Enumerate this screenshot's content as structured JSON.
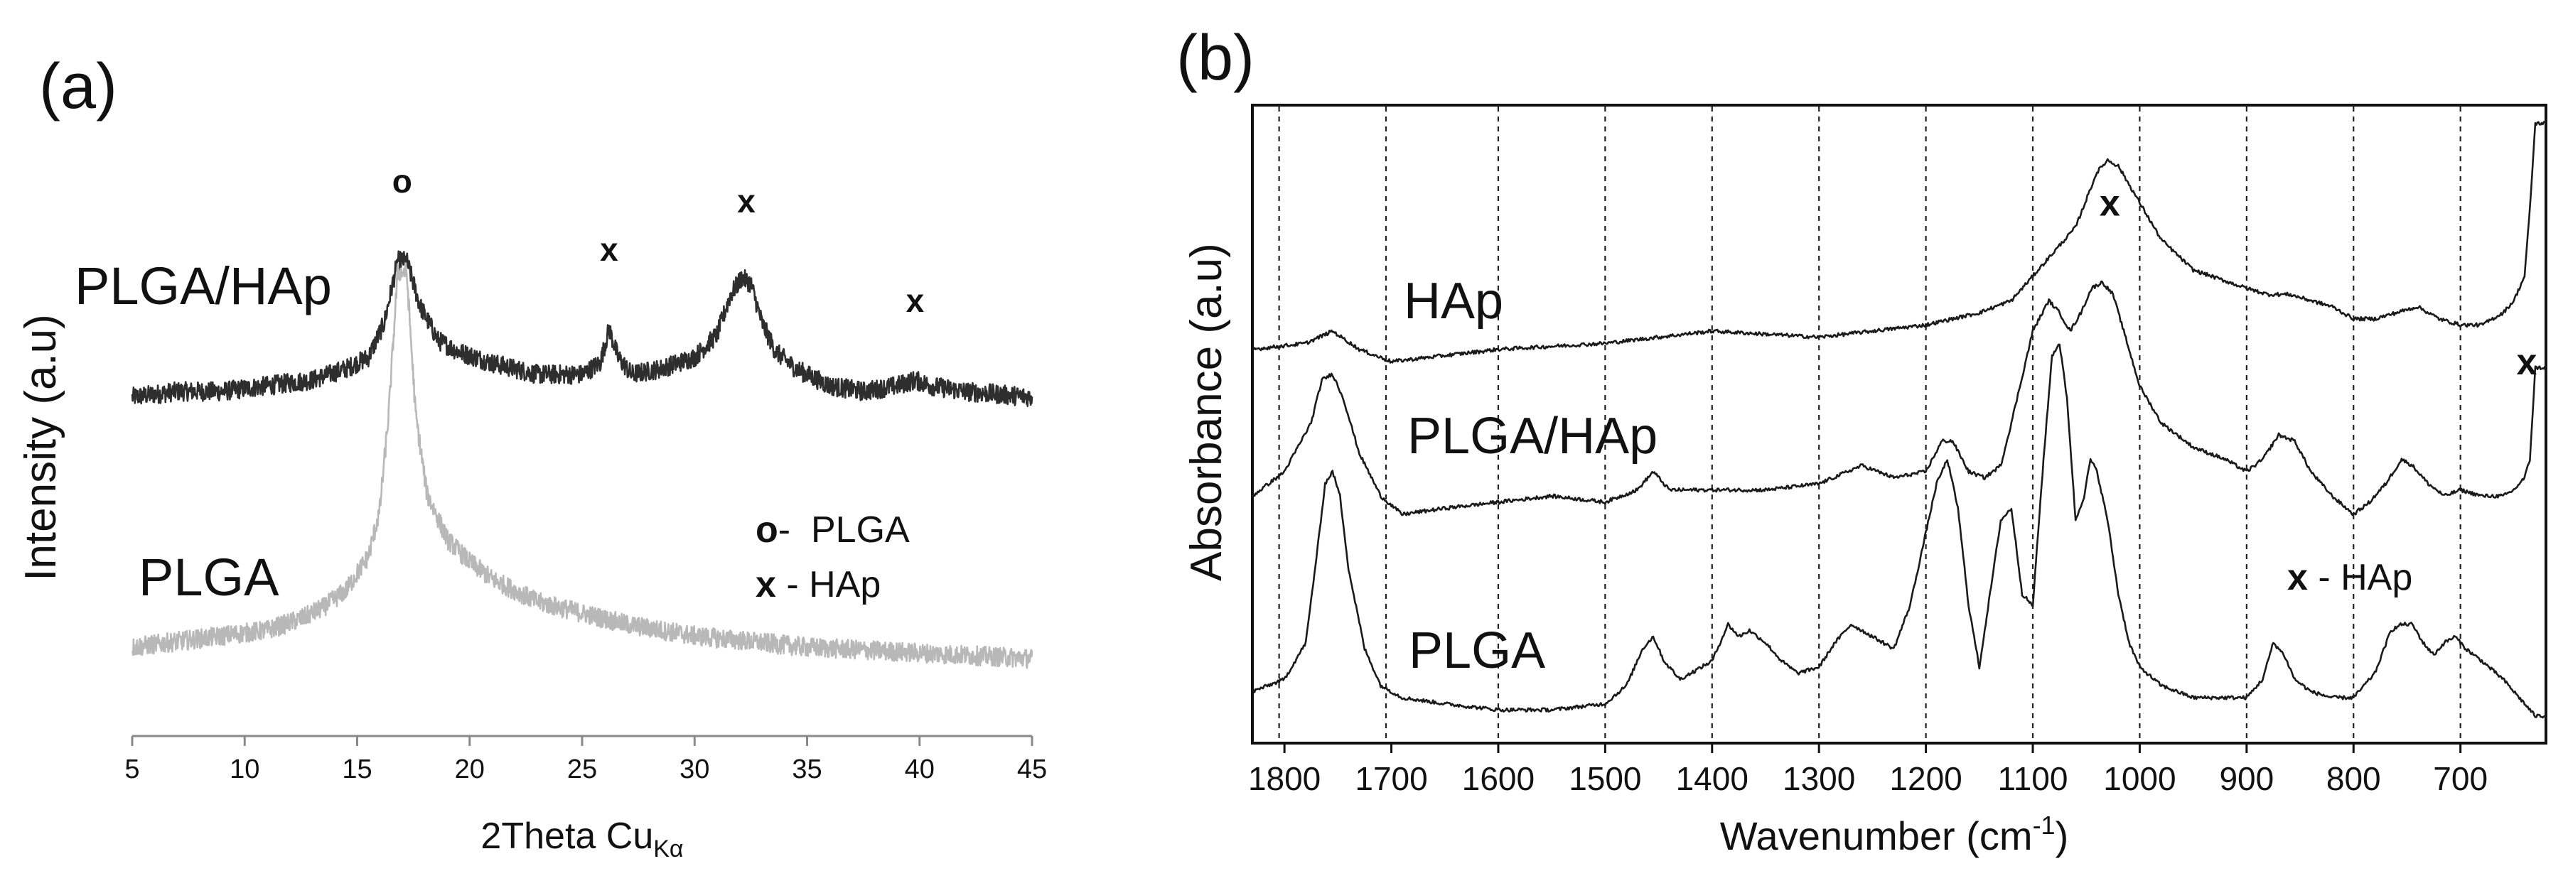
{
  "chart_data": [
    {
      "panel_label": "(a)",
      "type": "line",
      "title": "",
      "xlabel": "2Theta Cu",
      "xlabel_sub": "Kα",
      "ylabel": "Intensity (a.u)",
      "xlim": [
        5,
        45
      ],
      "ylim": [
        0,
        100
      ],
      "xticks": [
        "5",
        "10",
        "15",
        "20",
        "25",
        "30",
        "35",
        "40",
        "45"
      ],
      "xtick_values": [
        5,
        10,
        15,
        20,
        25,
        30,
        35,
        40,
        45
      ],
      "y_axis_ticks": "none",
      "grid": false,
      "series": [
        {
          "name": "PLGA/HAp",
          "color": "#2e2e2e",
          "x": [
            5,
            7,
            9,
            11,
            13,
            14.5,
            15.5,
            16.2,
            16.8,
            17.2,
            17.8,
            18.6,
            19.5,
            21,
            23,
            25,
            25.8,
            26.2,
            26.6,
            27.2,
            28.5,
            30,
            31,
            31.6,
            32.1,
            32.5,
            33,
            33.6,
            34.5,
            36,
            37.5,
            39,
            39.8,
            40.5,
            42,
            45
          ],
          "y": [
            57,
            58,
            58,
            59,
            60,
            62,
            64,
            70,
            81,
            81,
            73,
            67,
            65,
            63,
            61,
            61,
            63,
            69,
            64,
            61,
            62,
            64,
            68,
            75,
            78,
            77,
            70,
            65,
            62,
            59,
            58,
            59,
            60,
            59,
            58,
            57
          ]
        },
        {
          "name": "PLGA",
          "color": "#b8b8b8",
          "x": [
            5,
            7,
            9,
            11,
            12.5,
            13.5,
            14.5,
            15.5,
            16,
            16.4,
            16.8,
            17.2,
            17.6,
            18.1,
            19,
            20,
            21,
            22,
            23,
            25,
            27,
            30,
            35,
            40,
            45
          ],
          "y": [
            13,
            14,
            15,
            16,
            18,
            20,
            23,
            29,
            37,
            54,
            79,
            79,
            54,
            40,
            32,
            28,
            25,
            23,
            21,
            19,
            17,
            15,
            13,
            12,
            11
          ]
        }
      ],
      "series_labels": [
        "PLGA/HAp",
        "PLGA"
      ],
      "peak_markers": [
        {
          "symbol": "o",
          "x": 17
        },
        {
          "symbol": "x",
          "x": 26.2
        },
        {
          "symbol": "x",
          "x": 32.3
        },
        {
          "symbol": "x",
          "x": 39.8
        }
      ],
      "legend": {
        "position": "right-middle",
        "entries": [
          {
            "symbol": "o",
            "text": "-  PLGA"
          },
          {
            "symbol": "x",
            "text": " - HAp"
          }
        ]
      }
    },
    {
      "panel_label": "(b)",
      "type": "line",
      "title": "",
      "xlabel": "Wavenumber (cm",
      "xlabel_sup": "-1",
      "xlabel_end": ")",
      "ylabel": "Absorbance (a.u)",
      "xlim": [
        1830,
        620
      ],
      "ylim": [
        0,
        100
      ],
      "xticks": [
        "1800",
        "1700",
        "1600",
        "1500",
        "1400",
        "1300",
        "1200",
        "1100",
        "1000",
        "900",
        "800",
        "700"
      ],
      "xtick_values": [
        1800,
        1700,
        1600,
        1500,
        1400,
        1300,
        1200,
        1100,
        1000,
        900,
        800,
        700
      ],
      "vertical_dashed_lines": [
        1805,
        1705,
        1600,
        1500,
        1400,
        1300,
        1200,
        1100,
        1000,
        900,
        800,
        700
      ],
      "y_axis_ticks": "none",
      "series": [
        {
          "name": "HAp",
          "color": "#1a1a1a",
          "x": [
            1830,
            1780,
            1755,
            1730,
            1700,
            1600,
            1500,
            1400,
            1300,
            1250,
            1200,
            1150,
            1120,
            1100,
            1080,
            1060,
            1040,
            1030,
            1020,
            1000,
            980,
            950,
            900,
            880,
            860,
            820,
            800,
            780,
            760,
            740,
            720,
            700,
            680,
            660,
            650,
            640,
            635,
            630
          ],
          "y": [
            62,
            63,
            65,
            62,
            60,
            62,
            63,
            65,
            64,
            65,
            66,
            68,
            70,
            74,
            78,
            82,
            91,
            93,
            92,
            86,
            80,
            75,
            72,
            71,
            71,
            69,
            67,
            67,
            68,
            69,
            67,
            66,
            66,
            68,
            70,
            74,
            85,
            99
          ]
        },
        {
          "name": "PLGA/HAp",
          "color": "#1a1a1a",
          "x": [
            1830,
            1800,
            1775,
            1765,
            1755,
            1745,
            1730,
            1710,
            1690,
            1650,
            1600,
            1550,
            1500,
            1470,
            1455,
            1440,
            1400,
            1350,
            1300,
            1260,
            1230,
            1200,
            1185,
            1175,
            1160,
            1145,
            1130,
            1120,
            1100,
            1085,
            1075,
            1065,
            1055,
            1045,
            1035,
            1025,
            1015,
            1000,
            980,
            950,
            920,
            900,
            885,
            870,
            855,
            840,
            820,
            800,
            785,
            770,
            755,
            745,
            730,
            715,
            700,
            680,
            660,
            650,
            640,
            635,
            630
          ],
          "y": [
            38,
            42,
            50,
            57,
            58,
            54,
            45,
            38,
            35,
            36,
            37,
            38,
            37,
            39,
            42,
            39,
            39,
            39,
            40,
            43,
            41,
            42,
            47,
            47,
            42,
            41,
            43,
            50,
            65,
            70,
            68,
            65,
            68,
            72,
            73,
            71,
            65,
            56,
            50,
            46,
            44,
            42,
            44,
            48,
            47,
            42,
            38,
            35,
            37,
            40,
            44,
            43,
            40,
            38,
            39,
            38,
            38,
            39,
            41,
            44,
            59
          ]
        },
        {
          "name": "PLGA",
          "color": "#1a1a1a",
          "x": [
            1830,
            1800,
            1780,
            1770,
            1762,
            1755,
            1748,
            1740,
            1725,
            1710,
            1690,
            1650,
            1600,
            1550,
            1500,
            1480,
            1465,
            1455,
            1445,
            1430,
            1420,
            1400,
            1385,
            1375,
            1365,
            1350,
            1335,
            1320,
            1300,
            1285,
            1270,
            1250,
            1230,
            1215,
            1200,
            1190,
            1180,
            1170,
            1160,
            1150,
            1140,
            1130,
            1120,
            1110,
            1100,
            1090,
            1082,
            1075,
            1068,
            1060,
            1052,
            1046,
            1040,
            1030,
            1020,
            1010,
            1000,
            980,
            950,
            920,
            900,
            885,
            875,
            865,
            855,
            840,
            820,
            800,
            780,
            765,
            755,
            745,
            735,
            725,
            715,
            705,
            695,
            680,
            660,
            640,
            630
          ],
          "y": [
            6,
            8,
            14,
            28,
            40,
            42,
            38,
            26,
            13,
            7,
            5,
            4,
            3,
            3,
            4,
            7,
            13,
            15,
            11,
            8,
            9,
            11,
            17,
            15,
            16,
            14,
            11,
            9,
            10,
            14,
            17,
            15,
            13,
            20,
            32,
            40,
            44,
            36,
            20,
            10,
            22,
            34,
            36,
            22,
            20,
            44,
            61,
            63,
            54,
            34,
            38,
            44,
            42,
            34,
            22,
            14,
            10,
            7,
            5,
            5,
            5,
            8,
            14,
            12,
            8,
            6,
            5,
            5,
            9,
            16,
            17,
            17,
            14,
            12,
            14,
            15,
            13,
            11,
            8,
            4,
            2
          ]
        }
      ],
      "series_labels": [
        "HAp",
        "PLGA/HAp",
        "PLGA"
      ],
      "peak_markers": [
        {
          "symbol": "x",
          "x": 1028
        },
        {
          "symbol": "x",
          "x": 628
        }
      ],
      "legend": {
        "position": "bottom-right",
        "entries": [
          {
            "symbol": "x",
            "text": " - HAp"
          }
        ]
      }
    }
  ]
}
